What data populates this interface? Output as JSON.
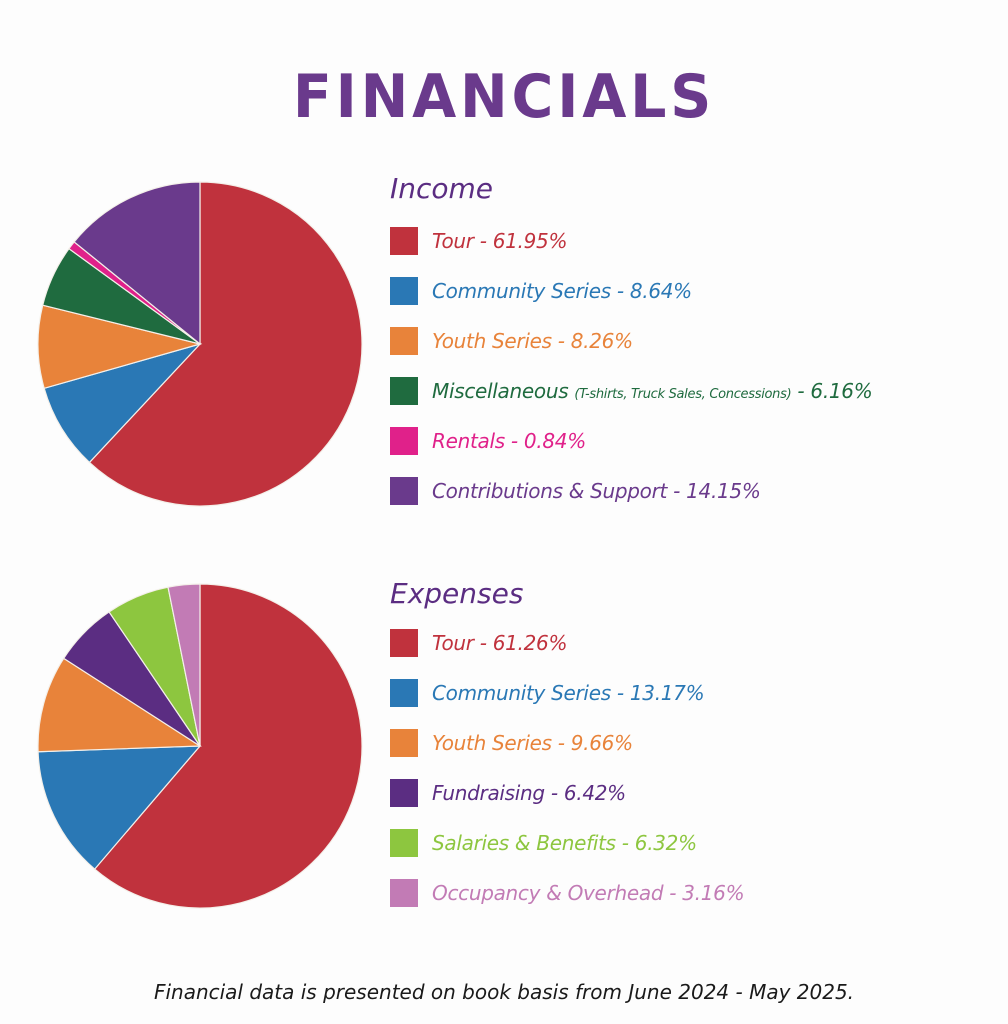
{
  "title": "FINANCIALS",
  "chart_data": [
    {
      "type": "pie",
      "title": "Income",
      "start": "top-clockwise",
      "slices": [
        {
          "label": "Tour",
          "value": 61.95,
          "display": "Tour  - 61.95%",
          "color": "#c0323d"
        },
        {
          "label": "Community Series",
          "value": 8.64,
          "display": "Community Series - 8.64%",
          "color": "#2a78b5"
        },
        {
          "label": "Youth Series",
          "value": 8.26,
          "display": "Youth Series - 8.26%",
          "color": "#e8833a"
        },
        {
          "label": "Miscellaneous",
          "value": 6.16,
          "display": "Miscellaneous",
          "note": "(T-shirts, Truck Sales, Concessions)",
          "suffix": " - 6.16%",
          "color": "#1f6b3f"
        },
        {
          "label": "Rentals",
          "value": 0.84,
          "display": "Rentals - 0.84%",
          "color": "#e0218a"
        },
        {
          "label": "Contributions & Support",
          "value": 14.15,
          "display": "Contributions & Support - 14.15%",
          "color": "#6a3a8c"
        }
      ]
    },
    {
      "type": "pie",
      "title": "Expenses",
      "start": "top-clockwise",
      "slices": [
        {
          "label": "Tour",
          "value": 61.26,
          "display": "Tour  - 61.26%",
          "color": "#c0323d"
        },
        {
          "label": "Community Series",
          "value": 13.17,
          "display": "Community Series - 13.17%",
          "color": "#2a78b5"
        },
        {
          "label": "Youth Series",
          "value": 9.66,
          "display": "Youth Series - 9.66%",
          "color": "#e8833a"
        },
        {
          "label": "Fundraising",
          "value": 6.42,
          "display": "Fundraising - 6.42%",
          "color": "#5b2d82"
        },
        {
          "label": "Salaries & Benefits",
          "value": 6.32,
          "display": "Salaries & Benefits - 6.32%",
          "color": "#8dc63f"
        },
        {
          "label": "Occupancy & Overhead",
          "value": 3.16,
          "display": "Occupancy & Overhead - 3.16%",
          "color": "#c27bb5"
        }
      ]
    }
  ],
  "footer": "Financial data is presented on book basis from June 2024 - May 2025."
}
